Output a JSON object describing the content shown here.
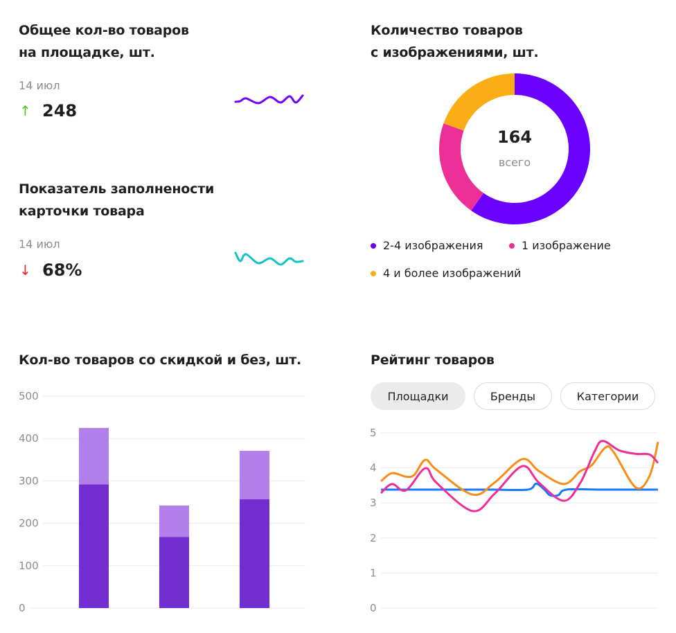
{
  "kpi_total": {
    "title_line1": "Общее кол-во товаров",
    "title_line2": "на площадке, шт.",
    "date": "14 июл",
    "value": "248",
    "trend": "up",
    "trend_color": "#52c41a",
    "sparkline_color": "#6f00ff",
    "sparkline": [
      147,
      146,
      142,
      149,
      140,
      148,
      139,
      148,
      138
    ]
  },
  "kpi_fill": {
    "title_line1": "Показатель заполнености",
    "title_line2": "карточки товара",
    "date": "14 июл",
    "value": "68%",
    "trend": "down",
    "trend_color": "#f5222d",
    "sparkline_color": "#13c2c2",
    "sparkline": [
      365,
      377,
      367,
      380,
      373,
      382,
      373,
      378,
      377
    ]
  },
  "chart_data": [
    {
      "type": "pie",
      "title": "Количество товаров с изображениями, шт.",
      "title_line1": "Количество товаров",
      "title_line2": "с изображениями, шт.",
      "center_value": "164",
      "center_label": "всего",
      "slices": [
        {
          "name": "2-4 изображения",
          "value": 98,
          "color": "#6a00ff"
        },
        {
          "name": "1 изображение",
          "value": 34,
          "color": "#eb2f96"
        },
        {
          "name": "4 и более изображений",
          "value": 32,
          "color": "#faad14"
        }
      ],
      "legend": "bottom"
    },
    {
      "type": "bar",
      "stacked": true,
      "title": "Кол-во товаров со скидкой и без, шт.",
      "ylim": [
        0,
        500
      ],
      "yticks": [
        "0",
        "100",
        "200",
        "300",
        "400",
        "500"
      ],
      "grid": true,
      "series": [
        {
          "values": [
            292,
            168,
            257
          ],
          "color": "#722ed1"
        },
        {
          "values": [
            133,
            74,
            114
          ],
          "color": "#b37feb"
        }
      ]
    },
    {
      "type": "line",
      "title": "Рейтинг товаров",
      "ylim": [
        0,
        5
      ],
      "yticks": [
        "0",
        "1",
        "2",
        "3",
        "4",
        "5"
      ],
      "grid": true,
      "tabs": [
        {
          "label": "Площадки",
          "active": true
        },
        {
          "label": "Бренды"
        },
        {
          "label": "Категории"
        }
      ],
      "series": [
        {
          "color": "#fa8c16",
          "points": [
            [
              0,
              3.62
            ],
            [
              4,
              3.85
            ],
            [
              9,
              3.75
            ],
            [
              12,
              3.8
            ],
            [
              16,
              4.23
            ],
            [
              20,
              3.95
            ],
            [
              33,
              3.24
            ],
            [
              41,
              3.58
            ],
            [
              51,
              4.25
            ],
            [
              57,
              3.91
            ],
            [
              66,
              3.54
            ],
            [
              72,
              3.91
            ],
            [
              76,
              4.07
            ],
            [
              81,
              4.58
            ],
            [
              84,
              4.45
            ],
            [
              92,
              3.44
            ],
            [
              97,
              3.78
            ],
            [
              100,
              4.74
            ]
          ]
        },
        {
          "color": "#eb2f96",
          "points": [
            [
              0,
              3.28
            ],
            [
              4,
              3.54
            ],
            [
              9,
              3.36
            ],
            [
              16,
              3.99
            ],
            [
              20,
              3.58
            ],
            [
              33,
              2.77
            ],
            [
              41,
              3.26
            ],
            [
              51,
              4.05
            ],
            [
              57,
              3.58
            ],
            [
              66,
              3.06
            ],
            [
              72,
              3.58
            ],
            [
              77,
              4.45
            ],
            [
              80,
              4.77
            ],
            [
              86,
              4.5
            ],
            [
              92,
              4.4
            ],
            [
              97,
              4.38
            ],
            [
              100,
              4.14
            ]
          ]
        },
        {
          "color": "#1677ff",
          "points": [
            [
              0,
              3.38
            ],
            [
              20,
              3.38
            ],
            [
              40,
              3.38
            ],
            [
              53,
              3.38
            ],
            [
              56,
              3.55
            ],
            [
              59,
              3.38
            ],
            [
              61,
              3.22
            ],
            [
              64,
              3.22
            ],
            [
              67,
              3.38
            ],
            [
              80,
              3.38
            ],
            [
              100,
              3.38
            ]
          ]
        }
      ]
    }
  ]
}
